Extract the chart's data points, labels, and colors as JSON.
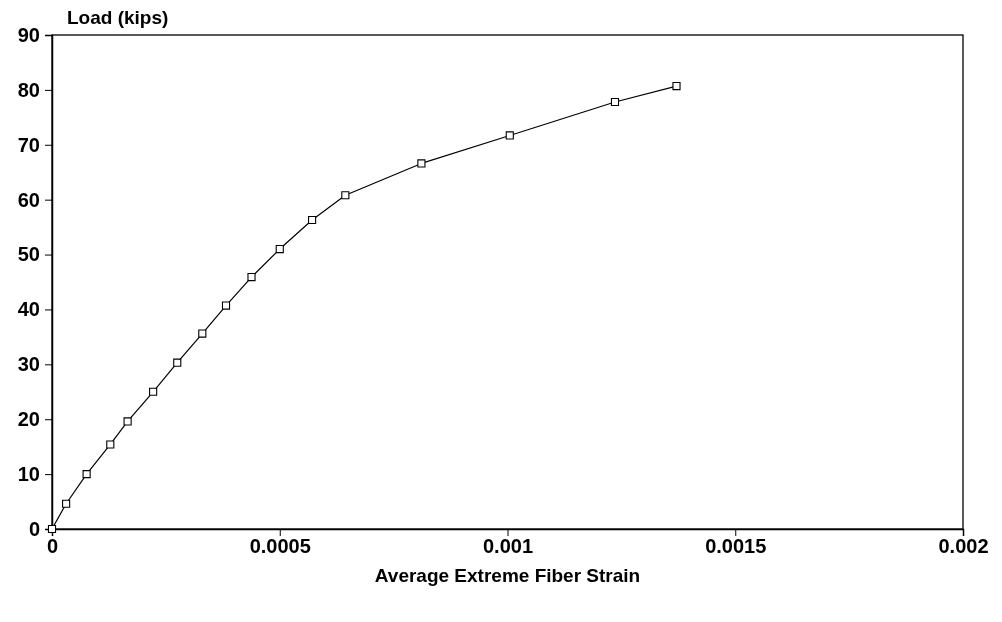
{
  "chart_data": {
    "type": "line",
    "xlabel": "Average Extreme Fiber Strain",
    "ylabel": "Load (kips)",
    "x": [
      0,
      3.1e-05,
      7.6e-05,
      0.000128,
      0.000166,
      0.000222,
      0.000275,
      0.00033,
      0.000382,
      0.000438,
      0.0005,
      0.000571,
      0.000644,
      0.000811,
      0.001005,
      0.001236,
      0.001371
    ],
    "series": [
      {
        "color": "#000000",
        "values": [
          0,
          4.6,
          10,
          15.4,
          19.6,
          25,
          30.3,
          35.6,
          40.7,
          45.9,
          51,
          56.3,
          60.8,
          66.6,
          71.7,
          77.8,
          80.7
        ]
      }
    ],
    "xlim": [
      0,
      0.002
    ],
    "xticks": [
      0,
      0.0005,
      0.001,
      0.0015,
      0.002
    ],
    "ylim": [
      0,
      90
    ],
    "yticks": [
      0,
      10,
      20,
      30,
      40,
      50,
      60,
      70,
      80,
      90
    ],
    "grid": false,
    "marker": "square",
    "line_style": "solid"
  }
}
